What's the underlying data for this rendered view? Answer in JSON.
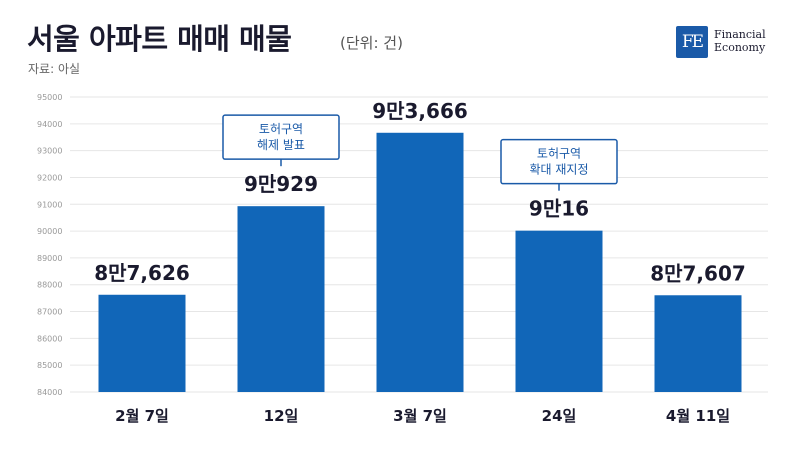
{
  "header": {
    "title": "서울 아파트 매매 매물",
    "unit": "(단위: 건)",
    "source": "자료: 아실"
  },
  "logo": {
    "mark": "FE",
    "name": "Financial\nEconomy"
  },
  "colors": {
    "bar": "#1166b8",
    "annotation_border": "#1a5aa8",
    "grid": "#e6e6e6"
  },
  "chart_data": {
    "type": "bar",
    "title": "서울 아파트 매매 매물",
    "xlabel": "",
    "ylabel": "",
    "ylim": [
      84000,
      95000
    ],
    "yticks": [
      84000,
      85000,
      86000,
      87000,
      88000,
      89000,
      90000,
      91000,
      92000,
      93000,
      94000,
      95000
    ],
    "grid": true,
    "categories": [
      "2월 7일",
      "12일",
      "3월 7일",
      "24일",
      "4월 11일"
    ],
    "values": [
      87626,
      90929,
      93666,
      90016,
      87607
    ],
    "data_labels": [
      "8만7,626",
      "9만929",
      "9만3,666",
      "9만16",
      "8만7,607"
    ],
    "annotations": [
      {
        "category_index": 1,
        "lines": [
          "토허구역",
          "해제 발표"
        ]
      },
      {
        "category_index": 3,
        "lines": [
          "토허구역",
          "확대 재지정"
        ]
      }
    ]
  }
}
